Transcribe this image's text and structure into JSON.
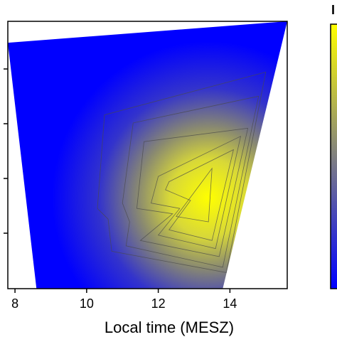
{
  "chart_data": {
    "type": "contour",
    "xlabel": "Local time (MESZ)",
    "ylabel": "",
    "xlim": [
      7.8,
      15.6
    ],
    "x_ticks": [
      "8",
      "10",
      "12",
      "14"
    ],
    "x_tick_values": [
      8,
      10,
      12,
      14
    ],
    "y_tick_count": 4,
    "grid": false,
    "colorscale": [
      "#0000ff",
      "#ffff00"
    ],
    "legend": {
      "placement": "right",
      "type": "colorbar",
      "title": "I"
    },
    "hull": [
      [
        7.8,
        0.92
      ],
      [
        15.6,
        1.0
      ],
      [
        13.8,
        0.0
      ],
      [
        8.6,
        0.0
      ]
    ],
    "peak": [
      13.4,
      0.34
    ],
    "contour_levels": [
      [
        [
          13.5,
          0.45
        ],
        [
          13.4,
          0.25
        ],
        [
          12.5,
          0.27
        ]
      ],
      [
        [
          14.1,
          0.52
        ],
        [
          13.5,
          0.18
        ],
        [
          12.3,
          0.22
        ],
        [
          12.9,
          0.33
        ],
        [
          12.2,
          0.37
        ],
        [
          12.3,
          0.4
        ]
      ],
      [
        [
          14.3,
          0.57
        ],
        [
          13.6,
          0.15
        ],
        [
          12.0,
          0.2
        ],
        [
          12.6,
          0.3
        ],
        [
          11.8,
          0.32
        ],
        [
          12.0,
          0.42
        ]
      ],
      [
        [
          14.5,
          0.6
        ],
        [
          13.7,
          0.12
        ],
        [
          11.5,
          0.18
        ],
        [
          12.4,
          0.28
        ],
        [
          11.4,
          0.3
        ],
        [
          11.6,
          0.55
        ]
      ],
      [
        [
          14.8,
          0.72
        ],
        [
          13.8,
          0.08
        ],
        [
          11.1,
          0.16
        ],
        [
          11.2,
          0.25
        ],
        [
          11.0,
          0.32
        ],
        [
          11.3,
          0.62
        ]
      ],
      [
        [
          15.0,
          0.81
        ],
        [
          13.9,
          0.06
        ],
        [
          10.7,
          0.14
        ],
        [
          10.6,
          0.26
        ],
        [
          10.3,
          0.3
        ],
        [
          10.5,
          0.65
        ]
      ]
    ]
  },
  "colors": {
    "low": "#0000ff",
    "high": "#ffff00",
    "mid": "#808080"
  }
}
